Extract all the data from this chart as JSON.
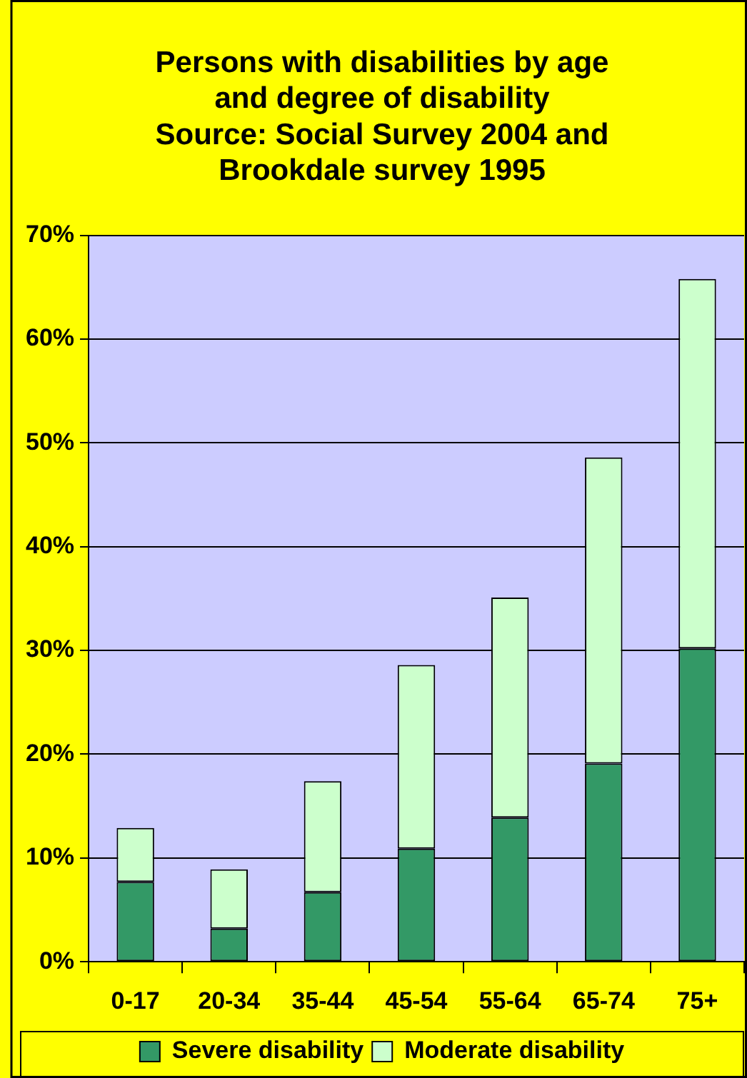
{
  "chart_data": {
    "type": "bar",
    "title": "Persons with disabilities by age and degree of disability",
    "subtitle": "Source: Social Survey 2004 and Brookdale survey 1995",
    "categories": [
      "0-17",
      "20-34",
      "35-44",
      "45-54",
      "55-64",
      "65-74",
      "75+"
    ],
    "series": [
      {
        "name": "Severe disability",
        "color": "#339966",
        "values": [
          7.7,
          3.2,
          6.7,
          10.9,
          13.9,
          19.1,
          30.2
        ]
      },
      {
        "name": "Moderate disability",
        "color": "#ccffcc",
        "values": [
          5.2,
          5.7,
          10.7,
          17.7,
          21.2,
          29.5,
          35.6
        ]
      }
    ],
    "stacked": true,
    "ylim": [
      0,
      70
    ],
    "yticks": [
      {
        "value": 0,
        "label": "0%"
      },
      {
        "value": 10,
        "label": "10%"
      },
      {
        "value": 20,
        "label": "20%"
      },
      {
        "value": 30,
        "label": "30%"
      },
      {
        "value": 40,
        "label": "40%"
      },
      {
        "value": 50,
        "label": "50%"
      },
      {
        "value": 60,
        "label": "60%"
      },
      {
        "value": 70,
        "label": "70%"
      }
    ],
    "grid": "y",
    "legend": "bottom"
  }
}
